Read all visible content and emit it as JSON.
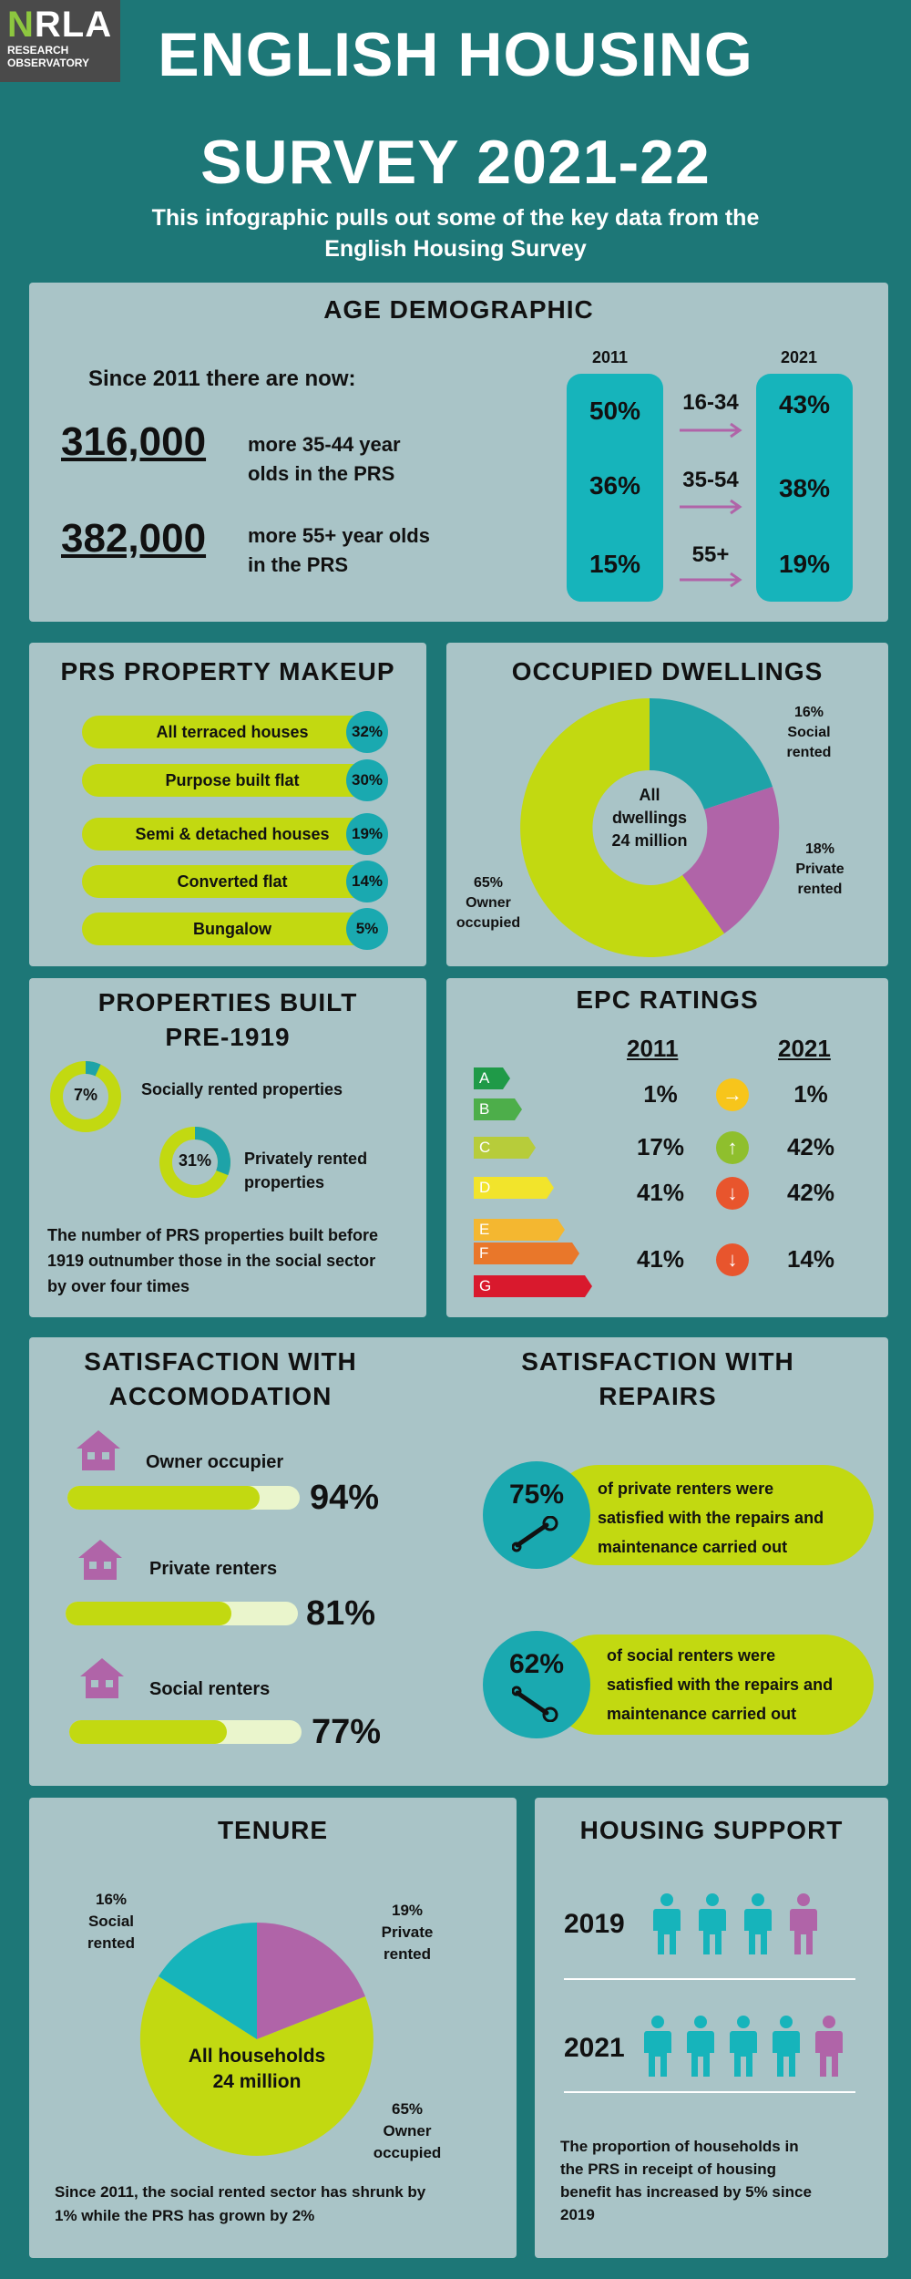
{
  "logo": {
    "brand": "NRLA",
    "brand_n": "N",
    "brand_rest": "RLA",
    "line1": "RESEARCH",
    "line2": "OBSERVATORY"
  },
  "header": {
    "title_line1": "ENGLISH HOUSING",
    "title_line2": "SURVEY 2021-22",
    "subtitle_line1": "This infographic pulls out some of the key data from the",
    "subtitle_line2": "English Housing Survey"
  },
  "age": {
    "title": "AGE DEMOGRAPHIC",
    "intro": "Since 2011 there are now:",
    "stat1_value": "316,000",
    "stat1_text_1": "more 35-44 year",
    "stat1_text_2": "olds in the PRS",
    "stat2_value": "382,000",
    "stat2_text_1": "more 55+ year olds",
    "stat2_text_2": "in the PRS",
    "year_a": "2011",
    "year_b": "2021",
    "rows": [
      {
        "group": "16-34",
        "a": "50%",
        "b": "43%"
      },
      {
        "group": "35-54",
        "a": "36%",
        "b": "38%"
      },
      {
        "group": "55+",
        "a": "15%",
        "b": "19%"
      }
    ]
  },
  "prs": {
    "title": "PRS PROPERTY MAKEUP",
    "items": [
      {
        "label": "All terraced houses",
        "pct": "32%"
      },
      {
        "label": "Purpose built flat",
        "pct": "30%"
      },
      {
        "label": "Semi & detached houses",
        "pct": "19%"
      },
      {
        "label": "Converted flat",
        "pct": "14%"
      },
      {
        "label": "Bungalow",
        "pct": "5%"
      }
    ]
  },
  "dwellings": {
    "title": "OCCUPIED DWELLINGS",
    "center_1": "All",
    "center_2": "dwellings",
    "center_3": "24 million",
    "social_pct": "16%",
    "social_1": "Social",
    "social_2": "rented",
    "private_pct": "18%",
    "private_1": "Private",
    "private_2": "rented",
    "owner_pct": "65%",
    "owner_1": "Owner",
    "owner_2": "occupied"
  },
  "pre1919": {
    "title_1": "PROPERTIES BUILT",
    "title_2": "PRE-1919",
    "social_pct": "7%",
    "social_label": "Socially rented properties",
    "private_pct": "31%",
    "private_label_1": "Privately rented",
    "private_label_2": "properties",
    "note_1": "The number of PRS properties built before",
    "note_2": "1919 outnumber those in the social  sector",
    "note_3": "by over four times"
  },
  "epc": {
    "title": "EPC RATINGS",
    "year_a": "2011",
    "year_b": "2021",
    "bands": [
      "A",
      "B",
      "C",
      "D",
      "E",
      "F",
      "G"
    ],
    "rows": [
      {
        "a": "1%",
        "b": "1%",
        "dir": "→"
      },
      {
        "a": "17%",
        "b": "42%",
        "dir": "↑"
      },
      {
        "a": "41%",
        "b": "42%",
        "dir": "↓"
      },
      {
        "a": "41%",
        "b": "14%",
        "dir": "↓"
      }
    ],
    "colors": {
      "A": "#1f9a48",
      "B": "#4dae4a",
      "C": "#b7cc3a",
      "D": "#f2e42b",
      "E": "#f4b730",
      "F": "#e9772a",
      "G": "#d9192d"
    }
  },
  "satisfaction": {
    "accom_title_1": "SATISFACTION WITH",
    "accom_title_2": "ACCOMODATION",
    "repairs_title_1": "SATISFACTION WITH",
    "repairs_title_2": "REPAIRS",
    "items": [
      {
        "label": "Owner occupier",
        "pct": "94%",
        "value": 0.94
      },
      {
        "label": "Private renters",
        "pct": "81%",
        "value": 0.81
      },
      {
        "label": "Social renters",
        "pct": "77%",
        "value": 0.77
      }
    ],
    "repairs": [
      {
        "pct": "75%",
        "line1": "of private renters were",
        "line2": "satisfied with the repairs and",
        "line3": "maintenance carried out"
      },
      {
        "pct": "62%",
        "line1": "of social renters were",
        "line2": "satisfied with the repairs and",
        "line3": "maintenance carried out"
      }
    ]
  },
  "tenure": {
    "title": "TENURE",
    "social_pct": "16%",
    "social_1": "Social",
    "social_2": "rented",
    "private_pct": "19%",
    "private_1": "Private",
    "private_2": "rented",
    "owner_pct": "65%",
    "owner_1": "Owner",
    "owner_2": "occupied",
    "center_1": "All households",
    "center_2": "24 million",
    "note_1": "Since 2011, the social rented sector has shrunk by",
    "note_2": "1% while the PRS has grown by 2%"
  },
  "support": {
    "title": "HOUSING SUPPORT",
    "year_a": "2019",
    "year_b": "2021",
    "note_1": "The proportion of households in",
    "note_2": "the PRS in receipt of housing",
    "note_3": "benefit has increased by 5% since",
    "note_4": "2019"
  },
  "palette": {
    "bg": "#1d7777",
    "panel": "#a9c4c7",
    "teal": "#16b4bb",
    "lime": "#c2d911",
    "purple": "#b064a8"
  }
}
